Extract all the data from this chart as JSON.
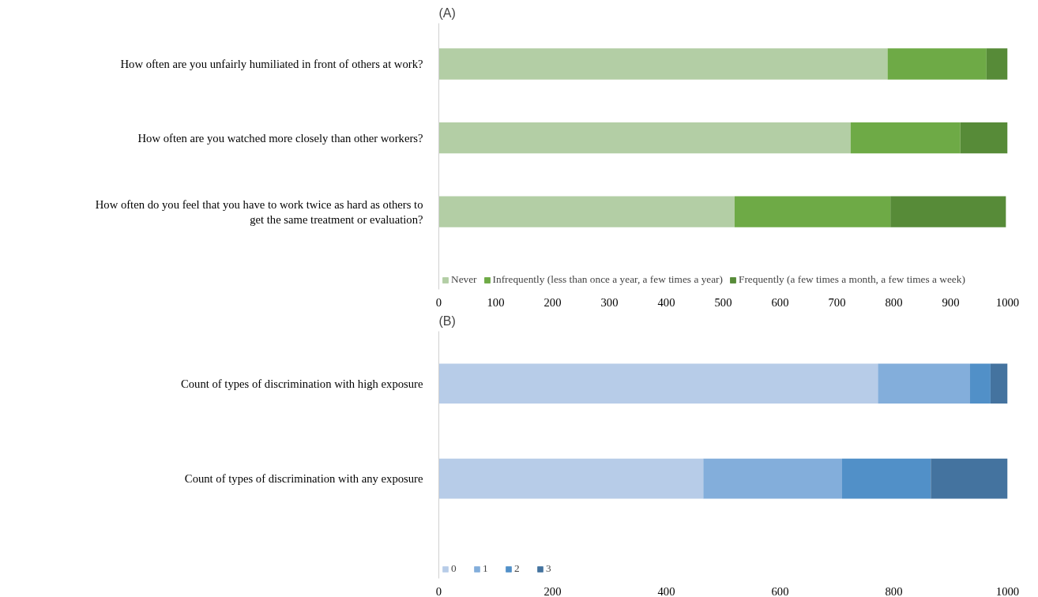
{
  "chart_data": [
    {
      "type": "bar",
      "title": "(A)",
      "orientation": "horizontal",
      "stacked": true,
      "legend": "bottom",
      "grid": false,
      "categories": [
        "How often are you unfairly humiliated in front of others at work?",
        "How often are you watched more closely than other workers?",
        "How often do you feel that you have to work twice as hard as others to get the same treatment or evaluation?"
      ],
      "series": [
        {
          "name": "Never",
          "color": "#b3cea5",
          "values": [
            789,
            724,
            520
          ]
        },
        {
          "name": "Infrequently (less than once a year, a few times a year)",
          "color": "#6eaa46",
          "values": [
            174,
            193,
            274
          ]
        },
        {
          "name": "Frequently (a few times a month, a few times a week)",
          "color": "#578b38",
          "values": [
            37,
            86,
            203
          ]
        }
      ],
      "xlim": [
        0,
        1000
      ],
      "xticks": [
        0,
        100,
        200,
        300,
        400,
        500,
        600,
        700,
        800,
        900,
        1000
      ]
    },
    {
      "type": "bar",
      "title": "(B)",
      "orientation": "horizontal",
      "stacked": true,
      "legend": "bottom",
      "grid": false,
      "categories": [
        "Count of types of discrimination with high exposure",
        "Count of types of discrimination with any exposure"
      ],
      "series": [
        {
          "name": "0",
          "color": "#b7cce8",
          "values": [
            772,
            465
          ]
        },
        {
          "name": "1",
          "color": "#83aedb",
          "values": [
            162,
            244
          ]
        },
        {
          "name": "2",
          "color": "#5190c8",
          "values": [
            36,
            156
          ]
        },
        {
          "name": "3",
          "color": "#44739f",
          "values": [
            30,
            135
          ]
        }
      ],
      "xlim": [
        0,
        1000
      ],
      "xticks": [
        0,
        200,
        400,
        600,
        800,
        1000
      ]
    }
  ]
}
